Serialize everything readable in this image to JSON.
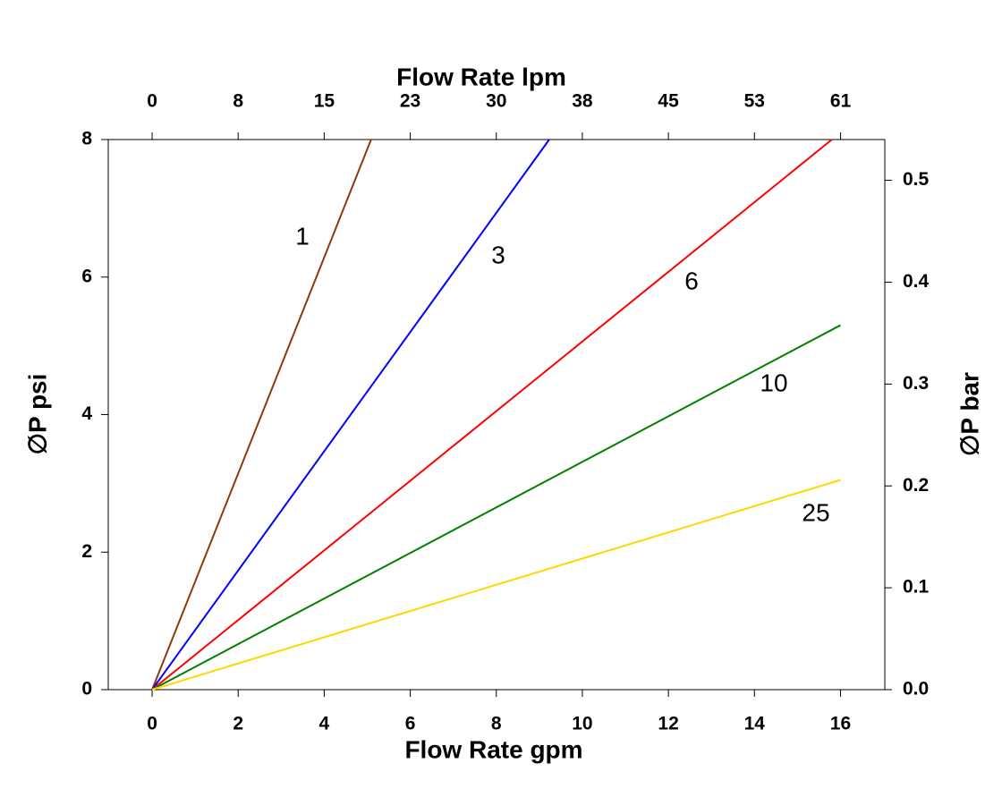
{
  "chart_data": {
    "type": "line",
    "xlabel": "Flow Rate gpm",
    "x2label": "Flow Rate lpm",
    "ylabel": "∅P psi",
    "y2label": "∅P bar",
    "xlim": [
      -1.02,
      17.03
    ],
    "xticks": [
      0,
      2,
      4,
      6,
      8,
      10,
      12,
      14,
      16
    ],
    "x2lim": [
      -3.86,
      64.46
    ],
    "x2ticks": [
      0,
      {
        "value": 7.57,
        "label": "8"
      },
      {
        "value": 15.14,
        "label": "15"
      },
      {
        "value": 22.71,
        "label": "23"
      },
      {
        "value": 30.28,
        "label": "30"
      },
      {
        "value": 37.85,
        "label": "38"
      },
      {
        "value": 45.42,
        "label": "45"
      },
      {
        "value": 52.99,
        "label": "53"
      },
      {
        "value": 60.57,
        "label": "61"
      }
    ],
    "ylim": [
      0,
      8
    ],
    "yticks": [
      0,
      2,
      4,
      6,
      8
    ],
    "y2lim": [
      0,
      0.54
    ],
    "y2ticks": [
      {
        "value": 0,
        "label": "0.0"
      },
      0.1,
      0.2,
      0.3,
      0.4,
      0.5
    ],
    "series": [
      {
        "name": "1",
        "color": "#8b3a0f",
        "x": [
          0,
          5.09
        ],
        "values": [
          0,
          8
        ]
      },
      {
        "name": "3",
        "color": "#0000ff",
        "x": [
          0,
          9.23
        ],
        "values": [
          0,
          8
        ]
      },
      {
        "name": "6",
        "color": "#ff0000",
        "x": [
          0,
          15.8
        ],
        "values": [
          0,
          8
        ]
      },
      {
        "name": "10",
        "color": "#008000",
        "x": [
          0,
          16
        ],
        "values": [
          0,
          5.3
        ]
      },
      {
        "name": "25",
        "color": "#ffd700",
        "x": [
          0,
          16
        ],
        "values": [
          0,
          3.05
        ]
      }
    ]
  }
}
